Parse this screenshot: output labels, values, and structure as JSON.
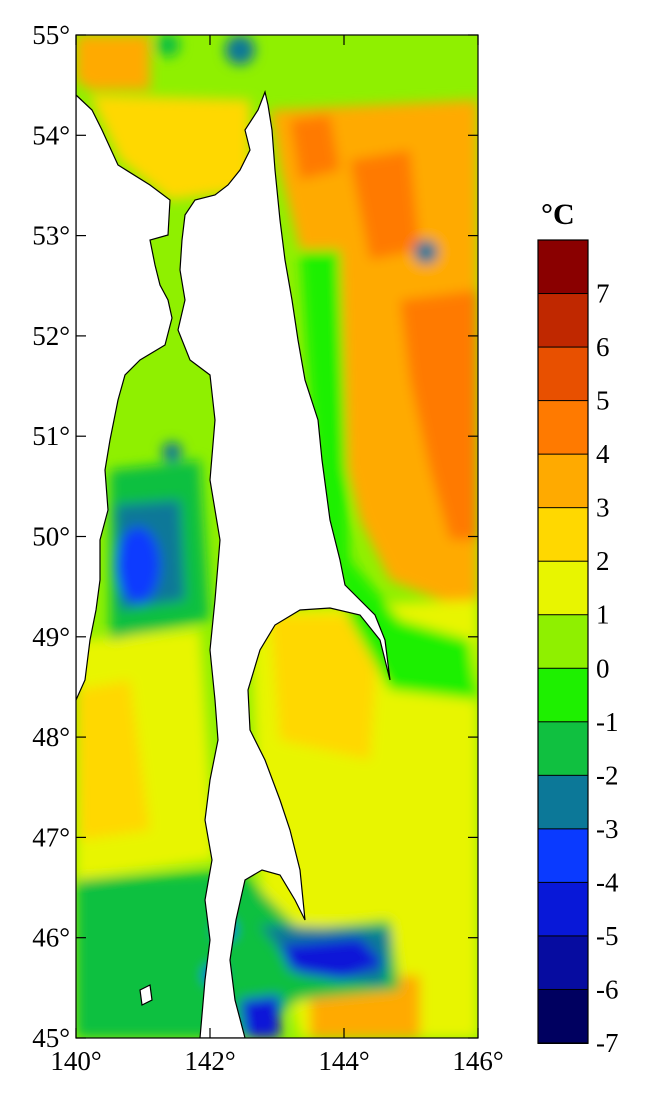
{
  "chart_data": {
    "type": "heatmap",
    "title": "",
    "xlabel": "",
    "ylabel": "",
    "unit_label": "°C",
    "x_ticks": [
      "140°",
      "142°",
      "144°",
      "146°"
    ],
    "y_ticks": [
      "45°",
      "46°",
      "47°",
      "48°",
      "49°",
      "50°",
      "51°",
      "52°",
      "53°",
      "54°",
      "55°"
    ],
    "xlim": [
      140,
      146
    ],
    "ylim": [
      45,
      55
    ],
    "colorbar": {
      "labels": [
        "7",
        "6",
        "5",
        "4",
        "3",
        "2",
        "1",
        "0",
        "-1",
        "-2",
        "-3",
        "-4",
        "-5",
        "-6",
        "-7"
      ],
      "colors": [
        "#8a0000",
        "#c02800",
        "#e85000",
        "#ff7a00",
        "#ffaa00",
        "#ffd800",
        "#e8f500",
        "#8ff000",
        "#1ef000",
        "#10c040",
        "#0c7898",
        "#0a3aff",
        "#0818d8",
        "#060ca0",
        "#000060"
      ]
    },
    "land_fill": "#ffffff",
    "dominant_field_colors": {
      "warm_east": "#ffaa00",
      "north_west": "#ffd800",
      "south": "#e8f500",
      "cold_core": "#0a3aff"
    }
  }
}
